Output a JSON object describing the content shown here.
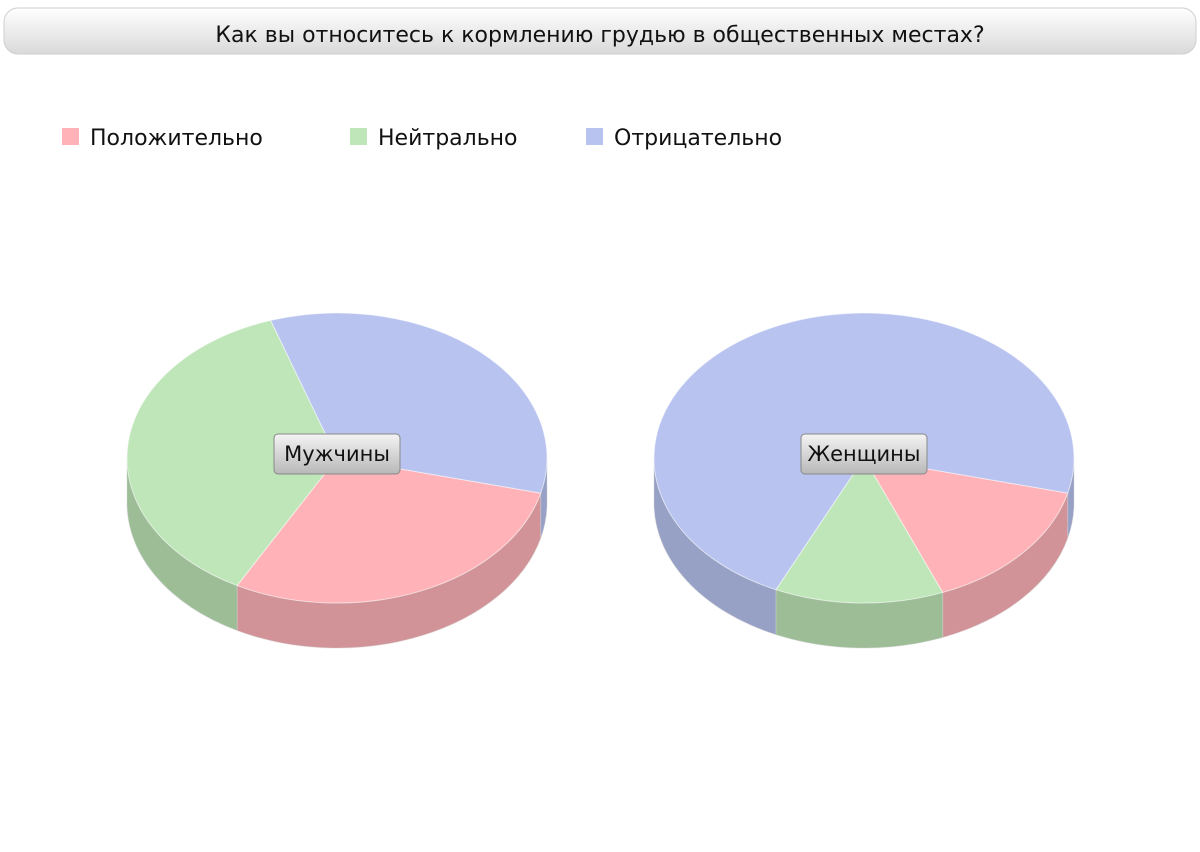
{
  "chart_data": {
    "type": "pie",
    "title": "Как вы относитесь к кормлению грудью в общественных местах?",
    "categories": [
      "Положительно",
      "Нейтрально",
      "Отрицательно"
    ],
    "colors": [
      "#ffb3b8",
      "#bfe6b8",
      "#b8c3f0"
    ],
    "series": [
      {
        "name": "Мужчины",
        "values": [
          29,
          37,
          34
        ]
      },
      {
        "name": "Женщины",
        "values": [
          15,
          13,
          72
        ]
      }
    ]
  }
}
